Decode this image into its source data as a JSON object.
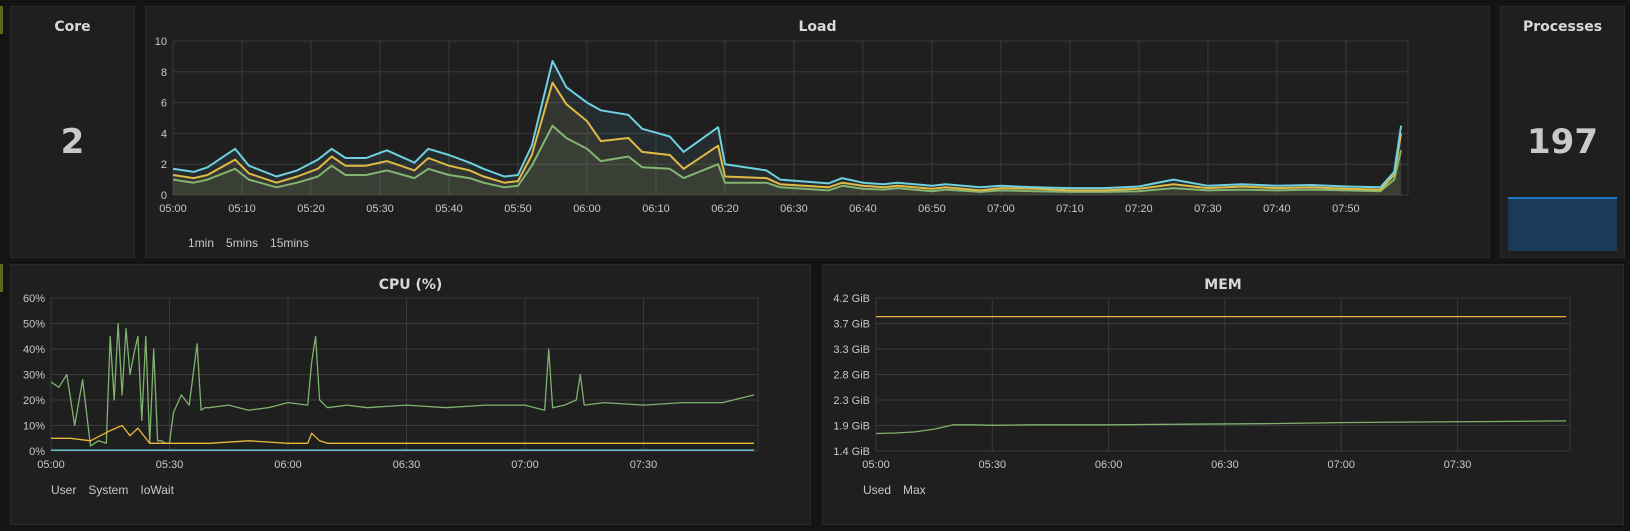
{
  "colors": {
    "green": "#7eb26d",
    "yellow": "#eab839",
    "cyan": "#6ed0e0",
    "blue": "#1f78c1",
    "grid": "#3a3a3c"
  },
  "core": {
    "title": "Core",
    "value": "2"
  },
  "processes": {
    "title": "Processes",
    "value": "197"
  },
  "load": {
    "title": "Load",
    "legend": [
      "1min",
      "5mins",
      "15mins"
    ],
    "chart_data": {
      "type": "line",
      "x_ticks": [
        "05:00",
        "05:10",
        "05:20",
        "05:30",
        "05:40",
        "05:50",
        "06:00",
        "06:10",
        "06:20",
        "06:30",
        "06:40",
        "06:50",
        "07:00",
        "07:10",
        "07:20",
        "07:30",
        "07:40",
        "07:50"
      ],
      "y_ticks": [
        "0",
        "2",
        "4",
        "6",
        "8",
        "10"
      ],
      "ylim": [
        0,
        10
      ],
      "xlim_minutes": [
        0,
        179
      ],
      "series": [
        {
          "name": "1min",
          "color": "#7eb26d",
          "x": [
            0,
            3,
            5,
            9,
            11,
            15,
            18,
            21,
            23,
            25,
            28,
            31,
            35,
            37,
            40,
            43,
            45,
            48,
            50,
            52,
            55,
            57,
            60,
            62,
            66,
            68,
            72,
            74,
            79,
            80,
            86,
            88,
            95,
            97,
            100,
            103,
            105,
            110,
            112,
            117,
            120,
            125,
            130,
            135,
            140,
            145,
            150,
            155,
            160,
            165,
            170,
            175,
            177,
            178
          ],
          "y": [
            1.0,
            0.8,
            1.0,
            1.7,
            1.0,
            0.5,
            0.8,
            1.2,
            1.9,
            1.3,
            1.3,
            1.6,
            1.1,
            1.7,
            1.3,
            1.1,
            0.8,
            0.5,
            0.6,
            1.9,
            4.5,
            3.7,
            3.0,
            2.2,
            2.5,
            1.8,
            1.7,
            1.1,
            2.0,
            0.8,
            0.8,
            0.5,
            0.3,
            0.6,
            0.4,
            0.35,
            0.45,
            0.25,
            0.35,
            0.2,
            0.3,
            0.25,
            0.2,
            0.2,
            0.25,
            0.45,
            0.3,
            0.35,
            0.3,
            0.35,
            0.3,
            0.25,
            1.0,
            2.9
          ]
        },
        {
          "name": "5mins",
          "color": "#eab839",
          "x": [
            0,
            3,
            5,
            9,
            11,
            15,
            18,
            21,
            23,
            25,
            28,
            31,
            35,
            37,
            40,
            43,
            45,
            48,
            50,
            52,
            55,
            57,
            60,
            62,
            66,
            68,
            72,
            74,
            79,
            80,
            86,
            88,
            95,
            97,
            100,
            103,
            105,
            110,
            112,
            117,
            120,
            125,
            130,
            135,
            140,
            145,
            150,
            155,
            160,
            165,
            170,
            175,
            177,
            178
          ],
          "y": [
            1.3,
            1.1,
            1.3,
            2.3,
            1.4,
            0.8,
            1.2,
            1.7,
            2.5,
            1.9,
            1.9,
            2.2,
            1.6,
            2.4,
            1.9,
            1.6,
            1.2,
            0.8,
            0.9,
            2.6,
            7.3,
            5.9,
            4.8,
            3.5,
            3.7,
            2.8,
            2.6,
            1.7,
            3.2,
            1.2,
            1.1,
            0.7,
            0.5,
            0.8,
            0.6,
            0.5,
            0.6,
            0.4,
            0.5,
            0.3,
            0.45,
            0.4,
            0.3,
            0.3,
            0.4,
            0.7,
            0.45,
            0.55,
            0.45,
            0.5,
            0.4,
            0.35,
            1.3,
            4.0
          ]
        },
        {
          "name": "15mins",
          "color": "#6ed0e0",
          "x": [
            0,
            3,
            5,
            9,
            11,
            15,
            18,
            21,
            23,
            25,
            28,
            31,
            35,
            37,
            40,
            43,
            45,
            48,
            50,
            52,
            55,
            57,
            60,
            62,
            66,
            68,
            72,
            74,
            79,
            80,
            86,
            88,
            95,
            97,
            100,
            103,
            105,
            110,
            112,
            117,
            120,
            125,
            130,
            135,
            140,
            145,
            150,
            155,
            160,
            165,
            170,
            175,
            177,
            178
          ],
          "y": [
            1.7,
            1.5,
            1.8,
            3.0,
            1.9,
            1.2,
            1.6,
            2.3,
            3.0,
            2.4,
            2.4,
            2.9,
            2.1,
            3.0,
            2.6,
            2.1,
            1.7,
            1.2,
            1.3,
            3.2,
            8.7,
            7.0,
            6.0,
            5.5,
            5.2,
            4.3,
            3.8,
            2.8,
            4.4,
            2.0,
            1.6,
            1.0,
            0.75,
            1.1,
            0.8,
            0.7,
            0.8,
            0.6,
            0.7,
            0.5,
            0.6,
            0.5,
            0.45,
            0.45,
            0.55,
            1.0,
            0.6,
            0.7,
            0.6,
            0.65,
            0.55,
            0.5,
            1.5,
            4.5
          ]
        }
      ]
    }
  },
  "cpu": {
    "title": "CPU (%)",
    "legend": [
      "User",
      "System",
      "IoWait"
    ],
    "chart_data": {
      "type": "line",
      "x_ticks": [
        "05:00",
        "05:30",
        "06:00",
        "06:30",
        "07:00",
        "07:30"
      ],
      "y_ticks": [
        "0%",
        "10%",
        "20%",
        "30%",
        "40%",
        "50%",
        "60%"
      ],
      "ylim": [
        0,
        60
      ],
      "xlim_minutes": [
        0,
        179
      ],
      "series": [
        {
          "name": "User",
          "color": "#7eb26d",
          "x": [
            0,
            2,
            4,
            6,
            8,
            10,
            12,
            14,
            15,
            16,
            17,
            18,
            19,
            20,
            21,
            22,
            23,
            24,
            25,
            26,
            27,
            28,
            29,
            30,
            31,
            33,
            35,
            37,
            38,
            39,
            40,
            45,
            50,
            55,
            60,
            65,
            66,
            67,
            68,
            70,
            75,
            80,
            90,
            100,
            110,
            120,
            125,
            126,
            127,
            130,
            133,
            134,
            135,
            140,
            150,
            160,
            170,
            178
          ],
          "y": [
            27,
            25,
            30,
            10,
            28,
            2,
            4,
            3,
            45,
            20,
            50,
            22,
            48,
            30,
            38,
            45,
            12,
            45,
            3,
            40,
            4,
            4,
            3,
            3,
            15,
            22,
            18,
            42,
            16,
            17,
            17,
            18,
            16,
            17,
            19,
            18,
            35,
            45,
            20,
            17,
            18,
            17,
            18,
            17,
            18,
            18,
            16,
            40,
            17,
            18,
            20,
            30,
            18,
            19,
            18,
            19,
            19,
            22
          ]
        },
        {
          "name": "System",
          "color": "#eab839",
          "x": [
            0,
            5,
            10,
            15,
            18,
            20,
            22,
            25,
            28,
            30,
            35,
            40,
            50,
            60,
            65,
            66,
            68,
            70,
            80,
            90,
            100,
            110,
            120,
            130,
            140,
            150,
            160,
            170,
            178
          ],
          "y": [
            5,
            5,
            4,
            8,
            10,
            6,
            9,
            3,
            3,
            3,
            3,
            3,
            4,
            3,
            3,
            7,
            4,
            3,
            3,
            3,
            3,
            3,
            3,
            3,
            3,
            3,
            3,
            3,
            3
          ]
        },
        {
          "name": "IoWait",
          "color": "#6ed0e0",
          "x": [
            0,
            178
          ],
          "y": [
            0.3,
            0.3
          ]
        }
      ]
    }
  },
  "mem": {
    "title": "MEM",
    "legend": [
      "Used",
      "Max"
    ],
    "chart_data": {
      "type": "line",
      "x_ticks": [
        "05:00",
        "05:30",
        "06:00",
        "06:30",
        "07:00",
        "07:30"
      ],
      "y_ticks": [
        "1.4 GiB",
        "1.9 GiB",
        "2.3 GiB",
        "2.8 GiB",
        "3.3 GiB",
        "3.7 GiB",
        "4.2 GiB"
      ],
      "ylim": [
        1.4,
        4.2
      ],
      "xlim_minutes": [
        0,
        179
      ],
      "series": [
        {
          "name": "Used",
          "color": "#7eb26d",
          "x": [
            0,
            5,
            10,
            15,
            20,
            25,
            30,
            40,
            50,
            60,
            80,
            100,
            120,
            140,
            160,
            178
          ],
          "y": [
            1.72,
            1.73,
            1.75,
            1.8,
            1.88,
            1.88,
            1.87,
            1.88,
            1.88,
            1.88,
            1.89,
            1.9,
            1.92,
            1.93,
            1.94,
            1.95
          ]
        },
        {
          "name": "Max",
          "color": "#eab839",
          "x": [
            0,
            178
          ],
          "y": [
            3.86,
            3.86
          ]
        }
      ]
    }
  }
}
